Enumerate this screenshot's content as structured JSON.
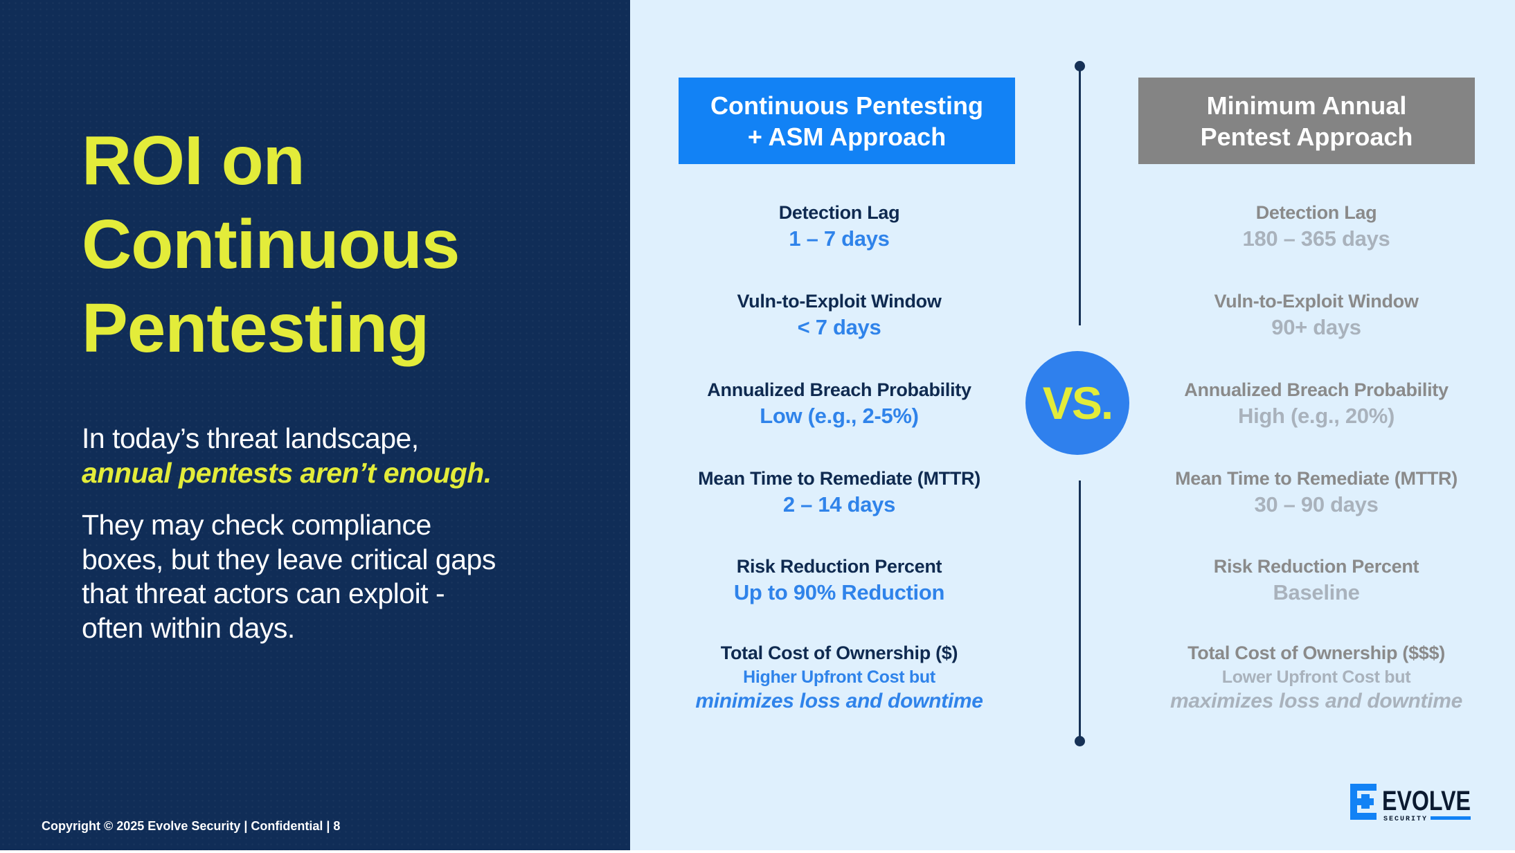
{
  "left": {
    "title_lines": [
      "ROI on",
      "Continuous",
      "Pentesting"
    ],
    "intro_line": "In today’s threat landscape,",
    "intro_highlight": "annual pentests aren’t enough.",
    "body_lines": [
      "They may check compliance",
      "boxes, but they leave critical gaps",
      "that threat actors can exploit  -",
      "often within days."
    ],
    "copyright": "Copyright © 2025 Evolve Security | Confidential | 8"
  },
  "comparison": {
    "left_header": [
      "Continuous Pentesting",
      "+ ASM Approach"
    ],
    "right_header": [
      "Minimum Annual",
      "Pentest Approach"
    ],
    "vs_label": "VS.",
    "metrics": [
      {
        "label": "Detection Lag",
        "left_value": "1 – 7 days",
        "right_value": "180 – 365 days"
      },
      {
        "label": "Vuln-to-Exploit Window",
        "left_value": "< 7 days",
        "right_value": "90+ days"
      },
      {
        "label": "Annualized Breach Probability",
        "left_value": "Low (e.g., 2-5%)",
        "right_value": "High (e.g., 20%)"
      },
      {
        "label": "Mean Time to Remediate (MTTR)",
        "left_value": "2 – 14 days",
        "right_value": "30 – 90 days"
      },
      {
        "label": "Risk Reduction Percent",
        "left_value": "Up to 90% Reduction",
        "right_value": "Baseline"
      }
    ],
    "tco": {
      "left_label": "Total Cost of Ownership ($)",
      "left_sub": "Higher Upfront Cost but",
      "left_emphasis": "minimizes loss and downtime",
      "right_label": "Total Cost of Ownership ($$$)",
      "right_sub": "Lower Upfront Cost but",
      "right_emphasis": "maximizes loss and downtime"
    }
  },
  "logo": {
    "name": "EVOLVE",
    "tagline": "SECURITY",
    "icon": "evolve-logo-icon"
  },
  "colors": {
    "navy": "#102d57",
    "yellow": "#e3ec3a",
    "blue": "#1282f5",
    "gray": "#848484",
    "light_bg": "#dff0fd"
  }
}
